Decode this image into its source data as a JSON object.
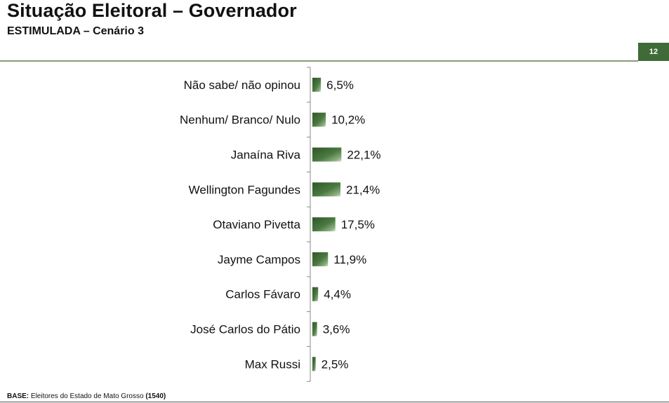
{
  "header": {
    "title": "Situação Eleitoral – Governador",
    "subtitle": "ESTIMULADA – Cenário 3",
    "page_number": "12"
  },
  "footer": {
    "base_label": "BASE:",
    "base_text": " Eleitores do Estado de Mato Grosso ",
    "base_count": "(1540)"
  },
  "colors": {
    "bar": "#3f6b37",
    "accent": "#3f6b37"
  },
  "chart_data": {
    "type": "bar",
    "orientation": "horizontal",
    "categories": [
      "Não sabe/ não opinou",
      "Nenhum/ Branco/ Nulo",
      "Janaína Riva",
      "Wellington Fagundes",
      "Otaviano Pivetta",
      "Jayme Campos",
      "Carlos Fávaro",
      "José Carlos do Pátio",
      "Max Russi"
    ],
    "values": [
      6.5,
      10.2,
      22.1,
      21.4,
      17.5,
      11.9,
      4.4,
      3.6,
      2.5
    ],
    "value_labels": [
      "6,5%",
      "10,2%",
      "22,1%",
      "21,4%",
      "17,5%",
      "11,9%",
      "4,4%",
      "3,6%",
      "2,5%"
    ],
    "title": "",
    "xlabel": "",
    "ylabel": "",
    "xlim": [
      0,
      100
    ],
    "grid": false,
    "legend": "none"
  }
}
